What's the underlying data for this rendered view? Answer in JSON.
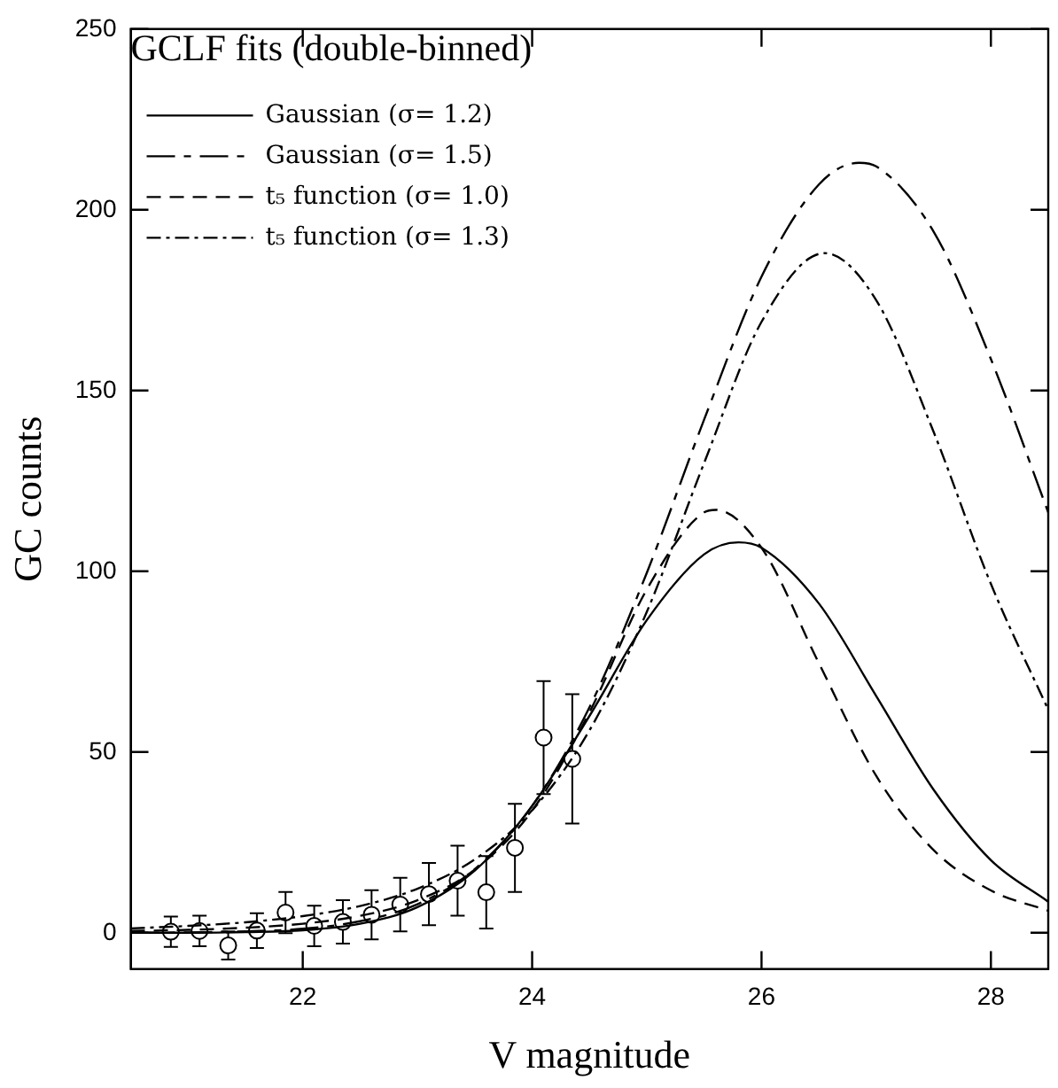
{
  "chart_data": {
    "type": "line",
    "xlabel": "V magnitude",
    "ylabel": "GC counts",
    "legend_title": "GCLF fits (double-binned)",
    "xlim": [
      20.5,
      28.5
    ],
    "ylim": [
      -10,
      250
    ],
    "xticks": [
      22,
      24,
      26,
      28
    ],
    "yticks": [
      0,
      50,
      100,
      150,
      200,
      250
    ],
    "grid": false,
    "legend": "top left",
    "marker": "none",
    "series": [
      {
        "name": "Gaussian (σ= 1.2)",
        "color": "#000000",
        "line_style": "solid",
        "x": [
          20.5,
          21,
          21.5,
          22,
          22.5,
          23,
          23.5,
          24,
          24.5,
          25,
          25.5,
          25.8,
          26,
          26.5,
          27,
          27.5,
          28,
          28.5
        ],
        "values": [
          0,
          0,
          0.2,
          0.7,
          2.5,
          7.1,
          17.2,
          35.1,
          60,
          86.5,
          104.7,
          108,
          106.5,
          91.1,
          65.5,
          39.6,
          20.1,
          8.6
        ]
      },
      {
        "name": "Gaussian (σ= 1.5)",
        "color": "#000000",
        "line_style": "longdash",
        "x": [
          20.5,
          21,
          21.5,
          22,
          22.5,
          23,
          23.5,
          24,
          24.5,
          25,
          25.5,
          26,
          26.5,
          26.85,
          27,
          27.5,
          28,
          28.5
        ],
        "values": [
          0,
          0.1,
          0.4,
          1.1,
          3.2,
          7.9,
          17.6,
          35.1,
          62.4,
          99.6,
          142,
          181.5,
          207,
          213,
          212,
          194,
          158.7,
          116.3
        ]
      },
      {
        "name": "t₅ function (σ= 1.0)",
        "color": "#000000",
        "line_style": "dashed",
        "x": [
          20.5,
          21,
          21.5,
          22,
          22.5,
          23,
          23.5,
          24,
          24.5,
          25,
          25.5,
          25.6,
          26,
          26.5,
          27,
          27.5,
          28,
          28.5
        ],
        "values": [
          0.5,
          0.8,
          1.4,
          2.5,
          4.7,
          9,
          17.5,
          33.8,
          61,
          95,
          116.3,
          117,
          106.5,
          74.6,
          43.4,
          22.9,
          11.7,
          6.1
        ]
      },
      {
        "name": "t₅ function (σ= 1.3)",
        "color": "#000000",
        "line_style": "dashdot",
        "x": [
          20.5,
          21,
          21.5,
          22,
          22.5,
          23,
          23.5,
          24,
          24.5,
          25,
          25.5,
          26,
          26.55,
          27,
          27.5,
          28,
          28.5
        ],
        "values": [
          1.2,
          1.9,
          2.9,
          4.6,
          7.4,
          12.2,
          20.3,
          33.9,
          56,
          88.8,
          130,
          169,
          188,
          175,
          138.6,
          96.5,
          61.7
        ]
      },
      {
        "type": "scatter",
        "color": "#000000",
        "marker": "circle",
        "x": [
          20.85,
          21.1,
          21.35,
          21.6,
          21.85,
          22.1,
          22.35,
          22.6,
          22.85,
          23.1,
          23.35,
          23.6,
          23.85,
          24.1,
          24.35
        ],
        "values": [
          0.3,
          0.5,
          -3.5,
          0.6,
          5.6,
          1.9,
          3,
          5,
          7.8,
          10.7,
          14.4,
          11.2,
          23.5,
          54,
          48.1
        ],
        "errors": [
          4.2,
          4.2,
          3.9,
          4.8,
          5.7,
          5.6,
          6,
          6.8,
          7.4,
          8.6,
          9.7,
          10,
          12.2,
          15.6,
          17.9
        ]
      }
    ]
  }
}
